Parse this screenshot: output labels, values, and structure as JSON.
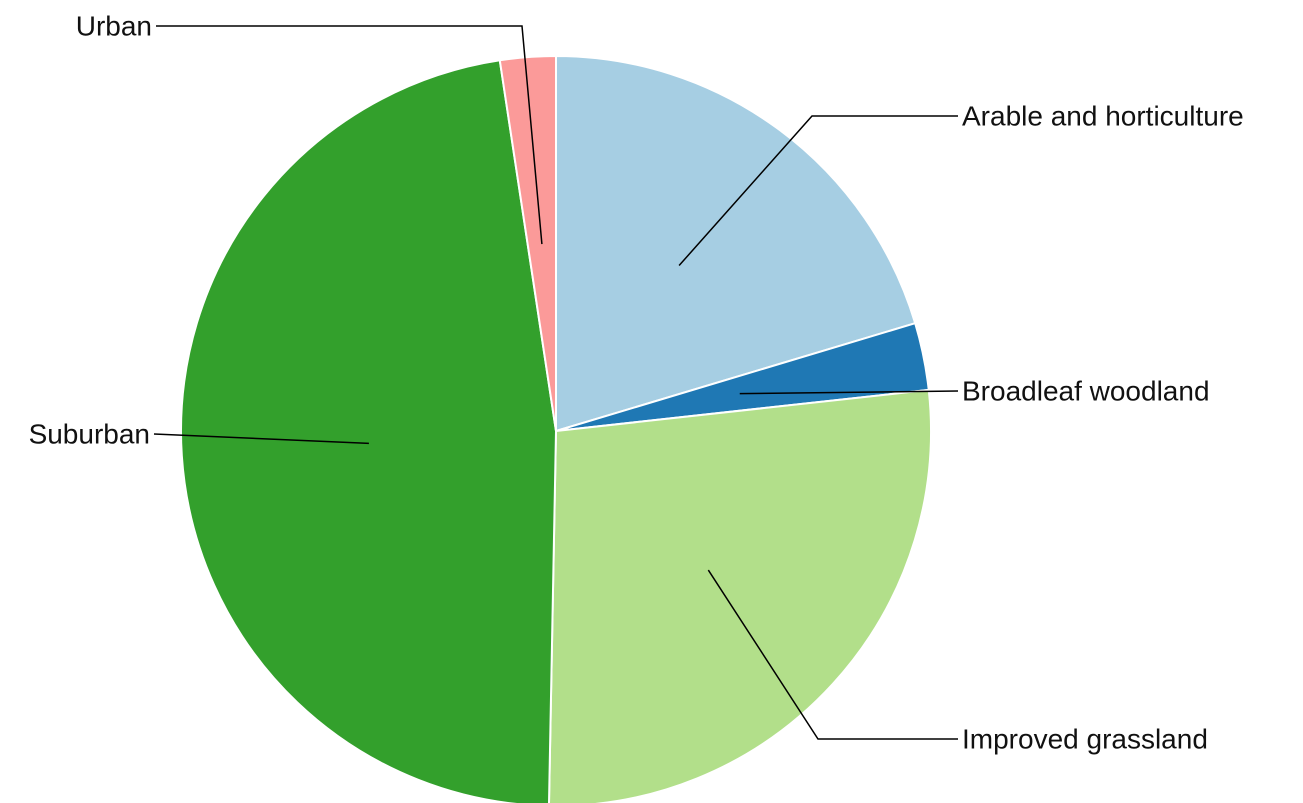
{
  "chart_data": {
    "type": "pie",
    "title": "",
    "start": "top",
    "direction": "clockwise",
    "slices": [
      {
        "label": "Arable and horticulture",
        "value": 20.4,
        "color": "#a6cee3"
      },
      {
        "label": "Broadleaf woodland",
        "value": 2.9,
        "color": "#1f78b4"
      },
      {
        "label": "Improved grassland",
        "value": 27.1,
        "color": "#b2df8a"
      },
      {
        "label": "Suburban",
        "value": 47.4,
        "color": "#33a02c"
      },
      {
        "label": "Urban",
        "value": 2.4,
        "color": "#fb9a99"
      }
    ]
  }
}
